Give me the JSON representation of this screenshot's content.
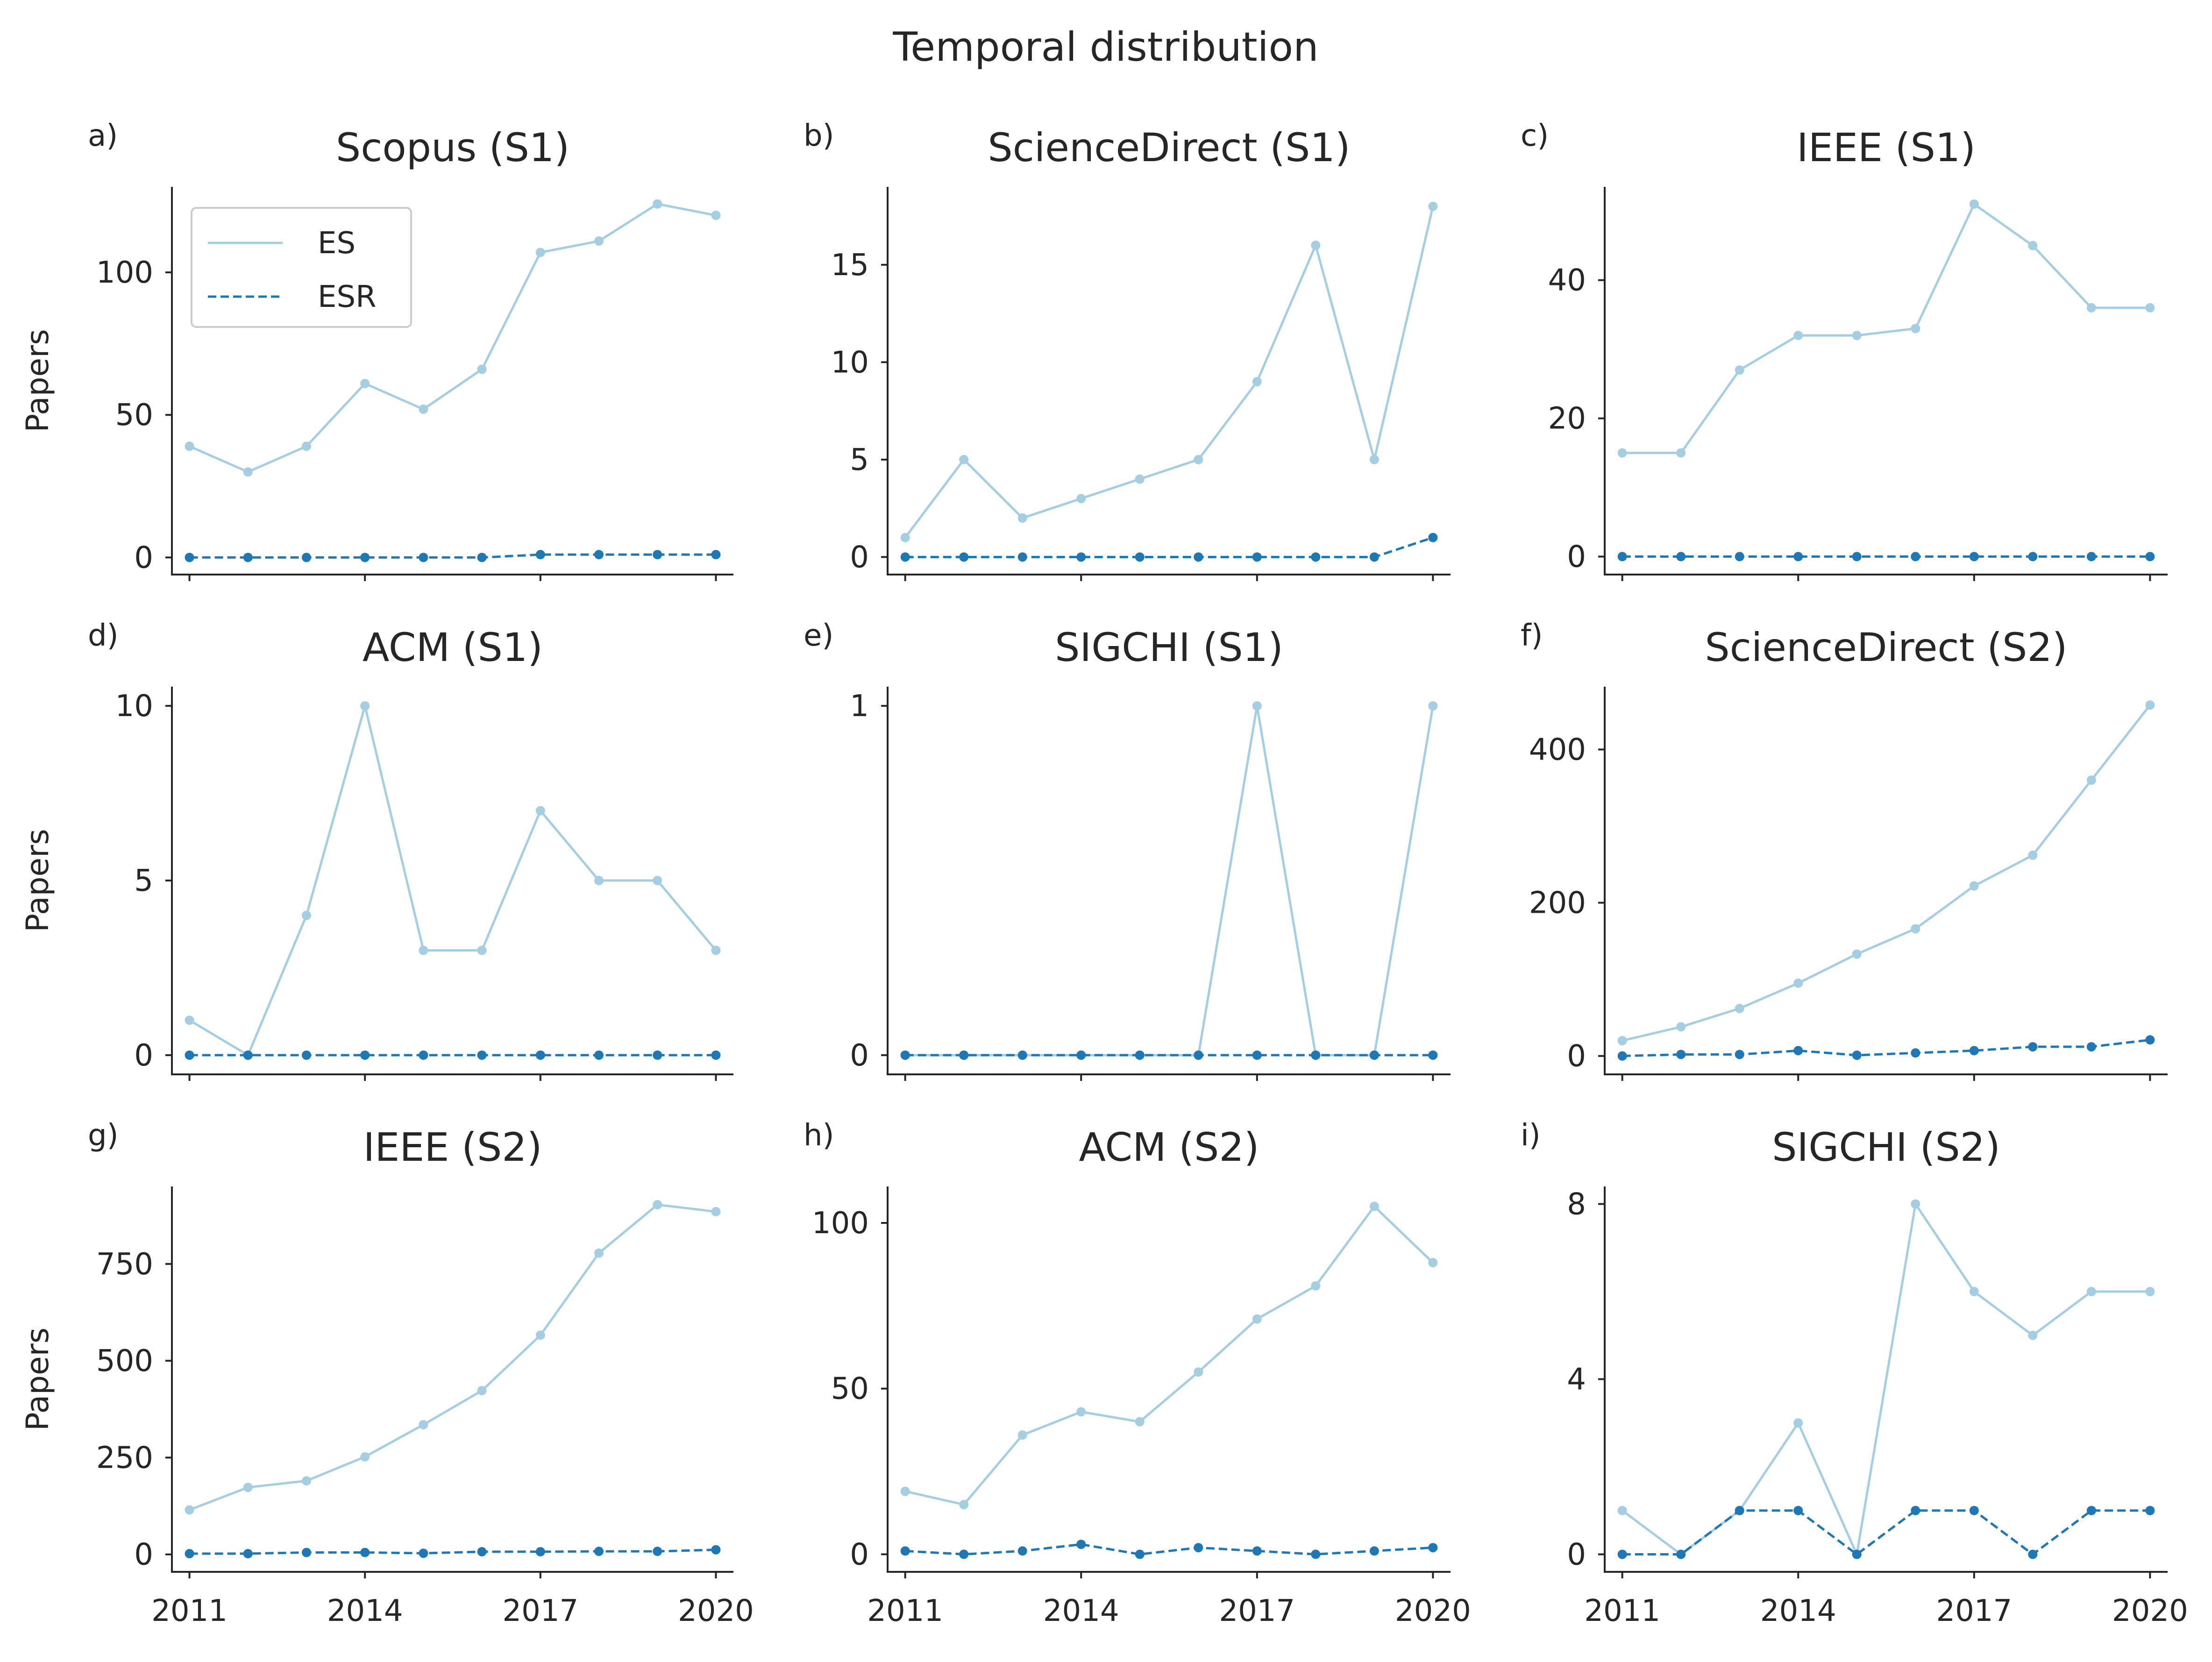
{
  "figure": {
    "title": "Temporal distribution"
  },
  "colors": {
    "ES": "#a6cee3",
    "ESR": "#1f78b4"
  },
  "legend": {
    "position": "upper-left of panel a",
    "entries": [
      {
        "name": "ES",
        "style": "solid"
      },
      {
        "name": "ESR",
        "style": "dashed"
      }
    ]
  },
  "chart_data": [
    {
      "type": "line",
      "panel": "a)",
      "title": "Scopus (S1)",
      "ylabel": "Papers",
      "x": [
        2011,
        2012,
        2013,
        2014,
        2015,
        2016,
        2017,
        2018,
        2019,
        2020
      ],
      "xticks": [
        "2011",
        "2014",
        "2017",
        "2020"
      ],
      "show_xticklabels": false,
      "ylim": [
        -6,
        130
      ],
      "yticks": [
        0,
        50,
        100
      ],
      "ytick_labels": [
        "0",
        "50",
        "100"
      ],
      "legend": true,
      "series": [
        {
          "name": "ES",
          "values": [
            39,
            30,
            39,
            61,
            52,
            66,
            107,
            111,
            124,
            120
          ]
        },
        {
          "name": "ESR",
          "values": [
            0,
            0,
            0,
            0,
            0,
            0,
            1,
            1,
            1,
            1
          ]
        }
      ]
    },
    {
      "type": "line",
      "panel": "b)",
      "title": "ScienceDirect (S1)",
      "ylabel": "",
      "x": [
        2011,
        2012,
        2013,
        2014,
        2015,
        2016,
        2017,
        2018,
        2019,
        2020
      ],
      "xticks": [
        "2011",
        "2014",
        "2017",
        "2020"
      ],
      "show_xticklabels": false,
      "ylim": [
        -0.9,
        19
      ],
      "yticks": [
        0,
        5,
        10,
        15
      ],
      "ytick_labels": [
        "0",
        "5",
        "10",
        "15"
      ],
      "series": [
        {
          "name": "ES",
          "values": [
            1,
            5,
            2,
            3,
            4,
            5,
            9,
            16,
            5,
            18
          ]
        },
        {
          "name": "ESR",
          "values": [
            0,
            0,
            0,
            0,
            0,
            0,
            0,
            0,
            0,
            1
          ]
        }
      ]
    },
    {
      "type": "line",
      "panel": "c)",
      "title": "IEEE (S1)",
      "ylabel": "",
      "x": [
        2011,
        2012,
        2013,
        2014,
        2015,
        2016,
        2017,
        2018,
        2019,
        2020
      ],
      "xticks": [
        "2011",
        "2014",
        "2017",
        "2020"
      ],
      "show_xticklabels": false,
      "ylim": [
        -2.6,
        53.5
      ],
      "yticks": [
        0,
        20,
        40
      ],
      "ytick_labels": [
        "0",
        "20",
        "40"
      ],
      "series": [
        {
          "name": "ES",
          "values": [
            15,
            15,
            27,
            32,
            32,
            33,
            51,
            45,
            36,
            36
          ]
        },
        {
          "name": "ESR",
          "values": [
            0,
            0,
            0,
            0,
            0,
            0,
            0,
            0,
            0,
            0
          ]
        }
      ]
    },
    {
      "type": "line",
      "panel": "d)",
      "title": "ACM (S1)",
      "ylabel": "Papers",
      "x": [
        2011,
        2012,
        2013,
        2014,
        2015,
        2016,
        2017,
        2018,
        2019,
        2020
      ],
      "xticks": [
        "2011",
        "2014",
        "2017",
        "2020"
      ],
      "show_xticklabels": false,
      "ylim": [
        -0.55,
        10.55
      ],
      "yticks": [
        0,
        5,
        10
      ],
      "ytick_labels": [
        "0",
        "5",
        "10"
      ],
      "series": [
        {
          "name": "ES",
          "values": [
            1,
            0,
            4,
            10,
            3,
            3,
            7,
            5,
            5,
            3
          ]
        },
        {
          "name": "ESR",
          "values": [
            0,
            0,
            0,
            0,
            0,
            0,
            0,
            0,
            0,
            0
          ]
        }
      ]
    },
    {
      "type": "line",
      "panel": "e)",
      "title": "SIGCHI (S1)",
      "ylabel": "",
      "x": [
        2011,
        2012,
        2013,
        2014,
        2015,
        2016,
        2017,
        2018,
        2019,
        2020
      ],
      "xticks": [
        "2011",
        "2014",
        "2017",
        "2020"
      ],
      "show_xticklabels": false,
      "ylim": [
        -0.055,
        1.055
      ],
      "yticks": [
        0,
        1
      ],
      "ytick_labels": [
        "0",
        "1"
      ],
      "series": [
        {
          "name": "ES",
          "values": [
            0,
            0,
            0,
            0,
            0,
            0,
            1,
            0,
            0,
            1
          ]
        },
        {
          "name": "ESR",
          "values": [
            0,
            0,
            0,
            0,
            0,
            0,
            0,
            0,
            0,
            0
          ]
        }
      ]
    },
    {
      "type": "line",
      "panel": "f)",
      "title": "ScienceDirect (S2)",
      "ylabel": "",
      "x": [
        2011,
        2012,
        2013,
        2014,
        2015,
        2016,
        2017,
        2018,
        2019,
        2020
      ],
      "xticks": [
        "2011",
        "2014",
        "2017",
        "2020"
      ],
      "show_xticklabels": false,
      "ylim": [
        -24,
        482
      ],
      "yticks": [
        0,
        200,
        400
      ],
      "ytick_labels": [
        "0",
        "200",
        "400"
      ],
      "series": [
        {
          "name": "ES",
          "values": [
            20,
            38,
            62,
            95,
            133,
            166,
            222,
            262,
            360,
            458
          ]
        },
        {
          "name": "ESR",
          "values": [
            0,
            2,
            2,
            7,
            1,
            4,
            7,
            12,
            12,
            21
          ]
        }
      ]
    },
    {
      "type": "line",
      "panel": "g)",
      "title": "IEEE (S2)",
      "ylabel": "Papers",
      "x": [
        2011,
        2012,
        2013,
        2014,
        2015,
        2016,
        2017,
        2018,
        2019,
        2020
      ],
      "xticks": [
        "2011",
        "2014",
        "2017",
        "2020"
      ],
      "show_xticklabels": true,
      "ylim": [
        -45,
        950
      ],
      "yticks": [
        0,
        250,
        500,
        750
      ],
      "ytick_labels": [
        "0",
        "250",
        "500",
        "750"
      ],
      "series": [
        {
          "name": "ES",
          "values": [
            115,
            173,
            190,
            252,
            335,
            423,
            566,
            778,
            903,
            885
          ]
        },
        {
          "name": "ESR",
          "values": [
            2,
            2,
            5,
            5,
            3,
            7,
            7,
            8,
            8,
            12
          ]
        }
      ]
    },
    {
      "type": "line",
      "panel": "h)",
      "title": "ACM (S2)",
      "ylabel": "",
      "x": [
        2011,
        2012,
        2013,
        2014,
        2015,
        2016,
        2017,
        2018,
        2019,
        2020
      ],
      "xticks": [
        "2011",
        "2014",
        "2017",
        "2020"
      ],
      "show_xticklabels": true,
      "ylim": [
        -5.3,
        111
      ],
      "yticks": [
        0,
        50,
        100
      ],
      "ytick_labels": [
        "0",
        "50",
        "100"
      ],
      "series": [
        {
          "name": "ES",
          "values": [
            19,
            15,
            36,
            43,
            40,
            55,
            71,
            81,
            105,
            88
          ]
        },
        {
          "name": "ESR",
          "values": [
            1,
            0,
            1,
            3,
            0,
            2,
            1,
            0,
            1,
            2
          ]
        }
      ]
    },
    {
      "type": "line",
      "panel": "i)",
      "title": "SIGCHI (S2)",
      "ylabel": "",
      "x": [
        2011,
        2012,
        2013,
        2014,
        2015,
        2016,
        2017,
        2018,
        2019,
        2020
      ],
      "xticks": [
        "2011",
        "2014",
        "2017",
        "2020"
      ],
      "show_xticklabels": true,
      "ylim": [
        -0.4,
        8.4
      ],
      "yticks": [
        0,
        4,
        8
      ],
      "ytick_labels": [
        "0",
        "4",
        "8"
      ],
      "series": [
        {
          "name": "ES",
          "values": [
            1,
            0,
            1,
            3,
            0,
            8,
            6,
            5,
            6,
            6
          ]
        },
        {
          "name": "ESR",
          "values": [
            0,
            0,
            1,
            1,
            0,
            1,
            1,
            0,
            1,
            1
          ]
        }
      ]
    }
  ]
}
